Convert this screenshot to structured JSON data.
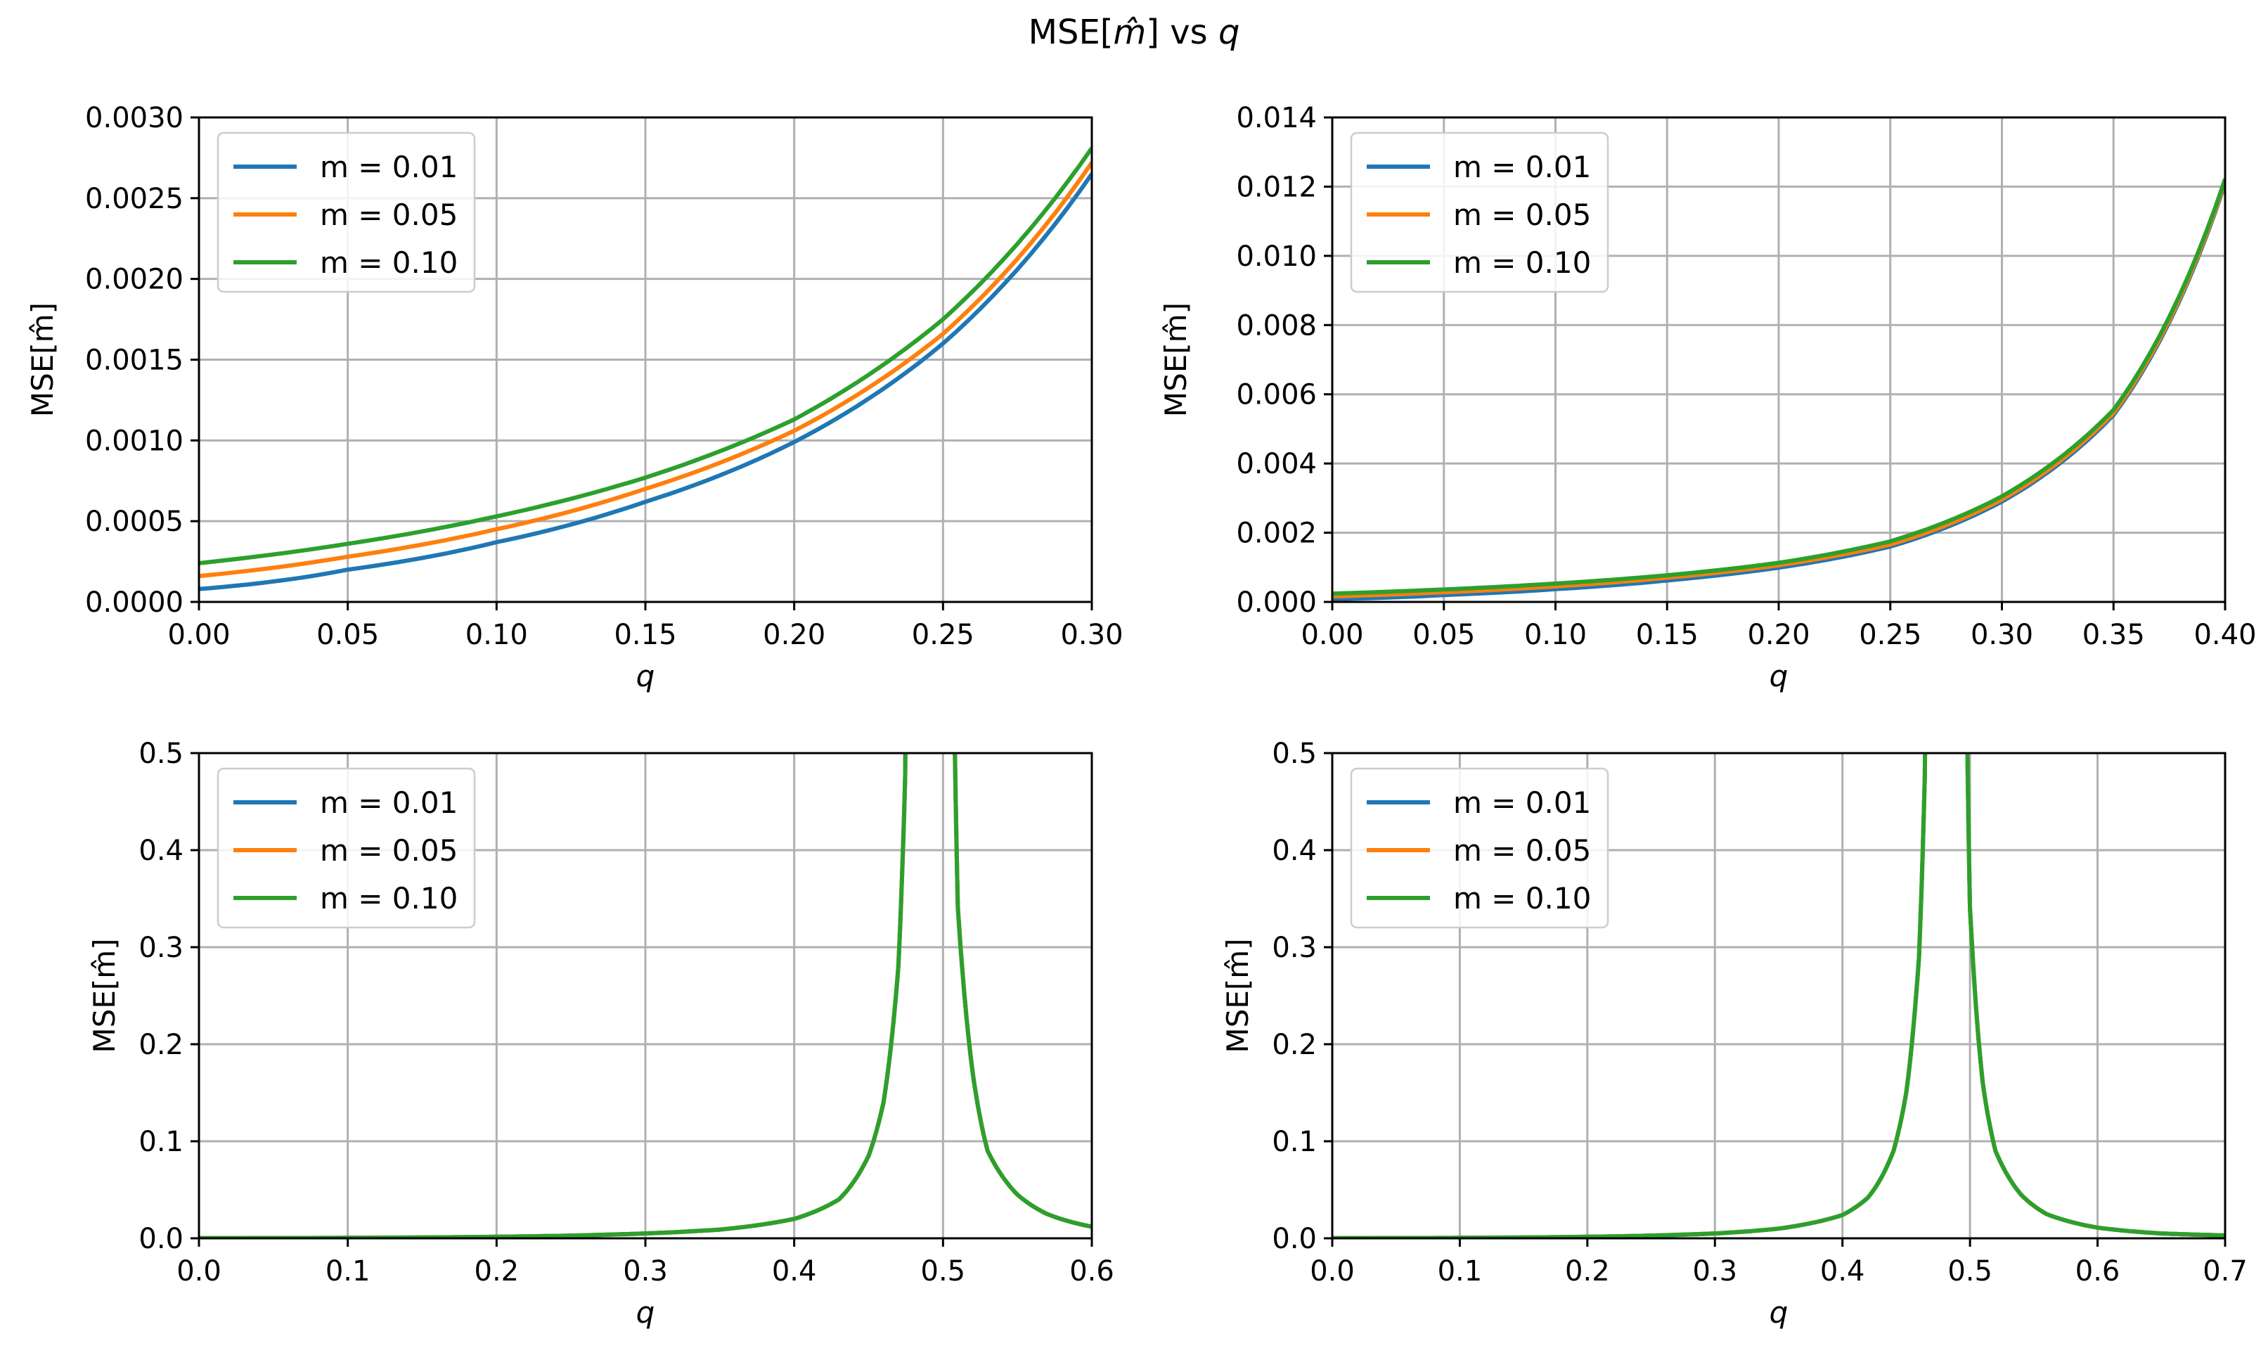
{
  "figure": {
    "title_main": "MSE[",
    "title_hat": "m̂",
    "title_close": "] vs ",
    "title_var": "q"
  },
  "colors": {
    "m001": "#1f77b4",
    "m005": "#ff7f0e",
    "m010": "#2ca02c",
    "grid": "#b0b0b0"
  },
  "chart_data": [
    {
      "type": "line",
      "xlabel": "q",
      "ylabel": "MSE[m̂]",
      "xlim": [
        0.0,
        0.3
      ],
      "ylim": [
        0.0,
        0.003
      ],
      "xticks": [
        0.0,
        0.05,
        0.1,
        0.15,
        0.2,
        0.25,
        0.3
      ],
      "xtick_labels": [
        "0.00",
        "0.05",
        "0.10",
        "0.15",
        "0.20",
        "0.25",
        "0.30"
      ],
      "yticks": [
        0.0,
        0.0005,
        0.001,
        0.0015,
        0.002,
        0.0025,
        0.003
      ],
      "ytick_labels": [
        "0.0000",
        "0.0005",
        "0.0010",
        "0.0015",
        "0.0020",
        "0.0025",
        "0.0030"
      ],
      "legend": {
        "placement": "top-left",
        "entries": [
          "m = 0.01",
          "m = 0.05",
          "m = 0.10"
        ]
      },
      "series": [
        {
          "name": "m = 0.01",
          "color": "#1f77b4",
          "x": [
            0.0,
            0.05,
            0.1,
            0.15,
            0.2,
            0.25,
            0.3
          ],
          "y": [
            8e-05,
            0.0002,
            0.00037,
            0.00062,
            0.00099,
            0.0016,
            0.00265
          ]
        },
        {
          "name": "m = 0.05",
          "color": "#ff7f0e",
          "x": [
            0.0,
            0.05,
            0.1,
            0.15,
            0.2,
            0.25,
            0.3
          ],
          "y": [
            0.00016,
            0.00028,
            0.00045,
            0.0007,
            0.00106,
            0.00166,
            0.00272
          ]
        },
        {
          "name": "m = 0.10",
          "color": "#2ca02c",
          "x": [
            0.0,
            0.05,
            0.1,
            0.15,
            0.2,
            0.25,
            0.3
          ],
          "y": [
            0.00024,
            0.00036,
            0.00053,
            0.00077,
            0.00113,
            0.00175,
            0.00281
          ]
        }
      ]
    },
    {
      "type": "line",
      "xlabel": "q",
      "ylabel": "MSE[m̂]",
      "xlim": [
        0.0,
        0.4
      ],
      "ylim": [
        0.0,
        0.014
      ],
      "xticks": [
        0.0,
        0.05,
        0.1,
        0.15,
        0.2,
        0.25,
        0.3,
        0.35,
        0.4
      ],
      "xtick_labels": [
        "0.00",
        "0.05",
        "0.10",
        "0.15",
        "0.20",
        "0.25",
        "0.30",
        "0.35",
        "0.40"
      ],
      "yticks": [
        0.0,
        0.002,
        0.004,
        0.006,
        0.008,
        0.01,
        0.012,
        0.014
      ],
      "ytick_labels": [
        "0.000",
        "0.002",
        "0.004",
        "0.006",
        "0.008",
        "0.010",
        "0.012",
        "0.014"
      ],
      "legend": {
        "placement": "top-left",
        "entries": [
          "m = 0.01",
          "m = 0.05",
          "m = 0.10"
        ]
      },
      "series": [
        {
          "name": "m = 0.01",
          "color": "#1f77b4",
          "x": [
            0.0,
            0.05,
            0.1,
            0.15,
            0.2,
            0.25,
            0.3,
            0.35,
            0.4
          ],
          "y": [
            8e-05,
            0.0002,
            0.00037,
            0.00062,
            0.00099,
            0.0016,
            0.0029,
            0.0054,
            0.0121
          ]
        },
        {
          "name": "m = 0.05",
          "color": "#ff7f0e",
          "x": [
            0.0,
            0.05,
            0.1,
            0.15,
            0.2,
            0.25,
            0.3,
            0.35,
            0.4
          ],
          "y": [
            0.00016,
            0.00028,
            0.00045,
            0.0007,
            0.00106,
            0.00166,
            0.00296,
            0.00546,
            0.01215
          ]
        },
        {
          "name": "m = 0.10",
          "color": "#2ca02c",
          "x": [
            0.0,
            0.05,
            0.1,
            0.15,
            0.2,
            0.25,
            0.3,
            0.35,
            0.4
          ],
          "y": [
            0.00024,
            0.00036,
            0.00053,
            0.00077,
            0.00113,
            0.00175,
            0.00305,
            0.00555,
            0.01222
          ]
        }
      ]
    },
    {
      "type": "line",
      "xlabel": "q",
      "ylabel": "MSE[m̂]",
      "xlim": [
        0.0,
        0.6
      ],
      "ylim": [
        0.0,
        0.5
      ],
      "xticks": [
        0.0,
        0.1,
        0.2,
        0.3,
        0.4,
        0.5,
        0.6
      ],
      "xtick_labels": [
        "0.0",
        "0.1",
        "0.2",
        "0.3",
        "0.4",
        "0.5",
        "0.6"
      ],
      "yticks": [
        0.0,
        0.1,
        0.2,
        0.3,
        0.4,
        0.5
      ],
      "ytick_labels": [
        "0.0",
        "0.1",
        "0.2",
        "0.3",
        "0.4",
        "0.5"
      ],
      "legend": {
        "placement": "top-left",
        "entries": [
          "m = 0.01",
          "m = 0.05",
          "m = 0.10"
        ]
      },
      "series": [
        {
          "name": "m = 0.01",
          "color": "#1f77b4",
          "x": [
            0.0,
            0.1,
            0.2,
            0.3,
            0.35,
            0.4,
            0.43,
            0.45,
            0.46,
            0.47,
            0.475,
            0.508,
            0.51,
            0.52,
            0.53,
            0.55,
            0.57,
            0.6
          ],
          "y": [
            0.0001,
            0.0004,
            0.0015,
            0.005,
            0.009,
            0.02,
            0.04,
            0.085,
            0.14,
            0.28,
            0.5,
            0.5,
            0.34,
            0.17,
            0.09,
            0.045,
            0.025,
            0.012
          ]
        },
        {
          "name": "m = 0.05",
          "color": "#ff7f0e",
          "x": [
            0.0,
            0.1,
            0.2,
            0.3,
            0.35,
            0.4,
            0.43,
            0.45,
            0.46,
            0.47,
            0.475,
            0.508,
            0.51,
            0.52,
            0.53,
            0.55,
            0.57,
            0.6
          ],
          "y": [
            0.0002,
            0.0005,
            0.0016,
            0.005,
            0.009,
            0.02,
            0.04,
            0.085,
            0.14,
            0.28,
            0.5,
            0.5,
            0.34,
            0.17,
            0.09,
            0.045,
            0.025,
            0.012
          ]
        },
        {
          "name": "m = 0.10",
          "color": "#2ca02c",
          "x": [
            0.0,
            0.1,
            0.2,
            0.3,
            0.35,
            0.4,
            0.43,
            0.45,
            0.46,
            0.47,
            0.475,
            0.508,
            0.51,
            0.52,
            0.53,
            0.55,
            0.57,
            0.6
          ],
          "y": [
            0.0002,
            0.0005,
            0.0016,
            0.005,
            0.009,
            0.02,
            0.04,
            0.085,
            0.14,
            0.28,
            0.5,
            0.5,
            0.34,
            0.17,
            0.09,
            0.045,
            0.025,
            0.012
          ]
        }
      ]
    },
    {
      "type": "line",
      "xlabel": "q",
      "ylabel": "MSE[m̂]",
      "xlim": [
        0.0,
        0.7
      ],
      "ylim": [
        0.0,
        0.5
      ],
      "xticks": [
        0.0,
        0.1,
        0.2,
        0.3,
        0.4,
        0.5,
        0.6,
        0.7
      ],
      "xtick_labels": [
        "0.0",
        "0.1",
        "0.2",
        "0.3",
        "0.4",
        "0.5",
        "0.6",
        "0.7"
      ],
      "yticks": [
        0.0,
        0.1,
        0.2,
        0.3,
        0.4,
        0.5
      ],
      "ytick_labels": [
        "0.0",
        "0.1",
        "0.2",
        "0.3",
        "0.4",
        "0.5"
      ],
      "legend": {
        "placement": "top-left",
        "entries": [
          "m = 0.01",
          "m = 0.05",
          "m = 0.10"
        ]
      },
      "series": [
        {
          "name": "m = 0.01",
          "color": "#1f77b4",
          "x": [
            0.0,
            0.1,
            0.2,
            0.3,
            0.35,
            0.4,
            0.42,
            0.44,
            0.45,
            0.46,
            0.465,
            0.498,
            0.5,
            0.51,
            0.52,
            0.54,
            0.56,
            0.6,
            0.65,
            0.7
          ],
          "y": [
            0.0001,
            0.0004,
            0.0015,
            0.005,
            0.01,
            0.024,
            0.042,
            0.09,
            0.15,
            0.29,
            0.5,
            0.5,
            0.34,
            0.16,
            0.09,
            0.045,
            0.025,
            0.011,
            0.005,
            0.003
          ]
        },
        {
          "name": "m = 0.05",
          "color": "#ff7f0e",
          "x": [
            0.0,
            0.1,
            0.2,
            0.3,
            0.35,
            0.4,
            0.42,
            0.44,
            0.45,
            0.46,
            0.465,
            0.498,
            0.5,
            0.51,
            0.52,
            0.54,
            0.56,
            0.6,
            0.65,
            0.7
          ],
          "y": [
            0.0002,
            0.0005,
            0.0016,
            0.005,
            0.01,
            0.024,
            0.042,
            0.09,
            0.15,
            0.29,
            0.5,
            0.5,
            0.34,
            0.16,
            0.09,
            0.045,
            0.025,
            0.011,
            0.005,
            0.003
          ]
        },
        {
          "name": "m = 0.10",
          "color": "#2ca02c",
          "x": [
            0.0,
            0.1,
            0.2,
            0.3,
            0.35,
            0.4,
            0.42,
            0.44,
            0.45,
            0.46,
            0.465,
            0.498,
            0.5,
            0.51,
            0.52,
            0.54,
            0.56,
            0.6,
            0.65,
            0.7
          ],
          "y": [
            0.0002,
            0.0005,
            0.0016,
            0.005,
            0.01,
            0.024,
            0.042,
            0.09,
            0.15,
            0.29,
            0.5,
            0.5,
            0.34,
            0.16,
            0.09,
            0.045,
            0.025,
            0.011,
            0.005,
            0.003
          ]
        }
      ]
    }
  ]
}
